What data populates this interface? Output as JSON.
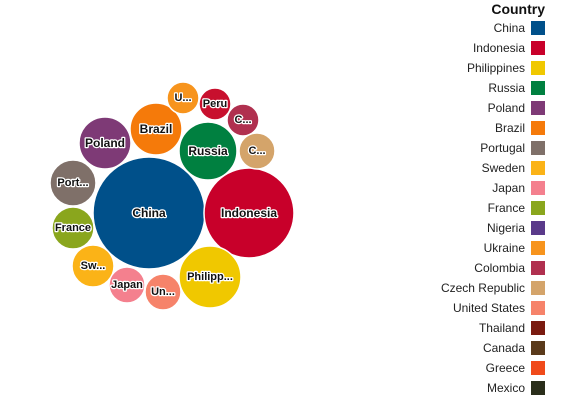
{
  "chart_data": {
    "type": "bubble",
    "legend_title": "Country",
    "legend_position": "right",
    "bubbles": [
      {
        "name": "China",
        "label": "China",
        "color": "#00508a"
      },
      {
        "name": "Indonesia",
        "label": "Indonesia",
        "color": "#c8002a"
      },
      {
        "name": "Philippines",
        "label": "Philipp...",
        "color": "#f0c800"
      },
      {
        "name": "Russia",
        "label": "Russia",
        "color": "#008040"
      },
      {
        "name": "Poland",
        "label": "Poland",
        "color": "#7e3a76"
      },
      {
        "name": "Brazil",
        "label": "Brazil",
        "color": "#f57a0a"
      },
      {
        "name": "Portugal",
        "label": "Port...",
        "color": "#7f7069"
      },
      {
        "name": "Sweden",
        "label": "Sw...",
        "color": "#fbb317"
      },
      {
        "name": "Japan",
        "label": "Japan",
        "color": "#f4808e"
      },
      {
        "name": "France",
        "label": "France",
        "color": "#8aa61d"
      },
      {
        "name": "Ukraine",
        "label": "U...",
        "color": "#f7941d"
      },
      {
        "name": "Colombia",
        "label": "C...",
        "color": "#b0304f"
      },
      {
        "name": "Czech Republic",
        "label": "C...",
        "color": "#d4a46a"
      },
      {
        "name": "United States",
        "label": "Un...",
        "color": "#f6836a"
      },
      {
        "name": "Peru",
        "label": "Peru",
        "color": "#c8102e"
      }
    ],
    "legend": [
      {
        "name": "China",
        "color": "#00508a"
      },
      {
        "name": "Indonesia",
        "color": "#c8002a"
      },
      {
        "name": "Philippines",
        "color": "#f0c800"
      },
      {
        "name": "Russia",
        "color": "#008040"
      },
      {
        "name": "Poland",
        "color": "#7e3a76"
      },
      {
        "name": "Brazil",
        "color": "#f57a0a"
      },
      {
        "name": "Portugal",
        "color": "#7f7069"
      },
      {
        "name": "Sweden",
        "color": "#fbb317"
      },
      {
        "name": "Japan",
        "color": "#f4808e"
      },
      {
        "name": "France",
        "color": "#8aa61d"
      },
      {
        "name": "Nigeria",
        "color": "#5a3a8a"
      },
      {
        "name": "Ukraine",
        "color": "#f7941d"
      },
      {
        "name": "Colombia",
        "color": "#b0304f"
      },
      {
        "name": "Czech Republic",
        "color": "#d4a46a"
      },
      {
        "name": "United States",
        "color": "#f6836a"
      },
      {
        "name": "Thailand",
        "color": "#7a1a10"
      },
      {
        "name": "Canada",
        "color": "#5a3a1a"
      },
      {
        "name": "Greece",
        "color": "#f04a1a"
      },
      {
        "name": "Mexico",
        "color": "#2a2e1a"
      }
    ]
  }
}
